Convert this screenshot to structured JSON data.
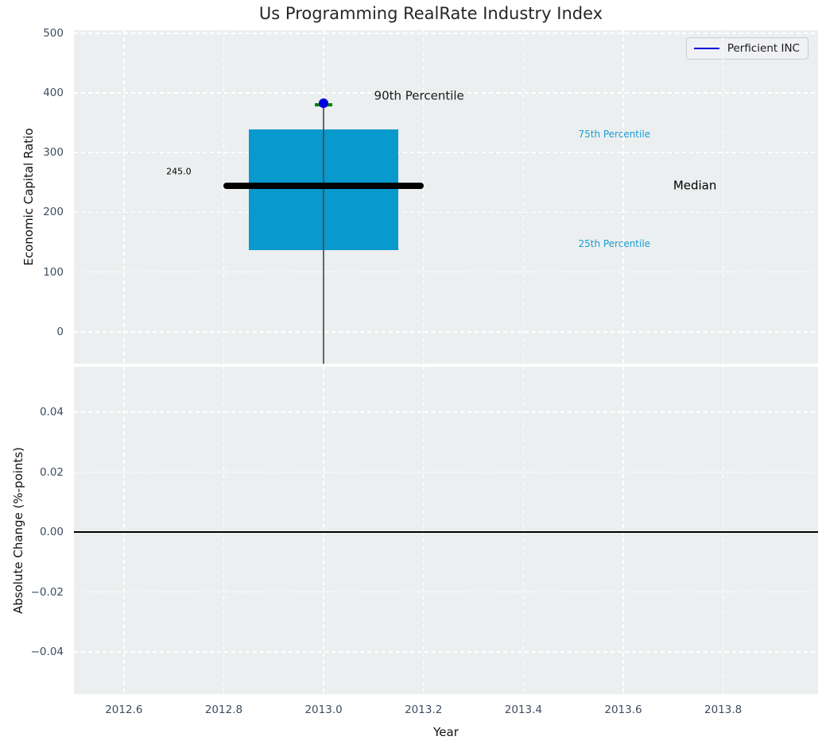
{
  "figure": {
    "title": "Us Programming RealRate Industry Index"
  },
  "legend": {
    "label": "Perficient INC",
    "line_color": "#0000dd"
  },
  "chart_data": [
    {
      "type": "box",
      "panel": "economic-capital-ratio",
      "title": "Us Programming RealRate Industry Index",
      "ylabel": "Economic Capital Ratio",
      "ylim": [
        -53.5,
        505
      ],
      "yticks": [
        0,
        100,
        200,
        300,
        400,
        500
      ],
      "ytick_labels": [
        "0",
        "100",
        "200",
        "300",
        "400",
        "500"
      ],
      "xlim": [
        2012.5,
        2013.99
      ],
      "xticks": [
        2012.6,
        2012.8,
        2013.0,
        2013.2,
        2013.4,
        2013.6,
        2013.8
      ],
      "xtick_labels": null,
      "grid": true,
      "legend_position": "upper right",
      "box": {
        "x_center": 2013.0,
        "half_width": 0.15,
        "p25": 136,
        "median": 245,
        "p75": 339,
        "p90": 380,
        "fill_color": "#0899cd"
      },
      "median_line": {
        "x_from": 2012.8,
        "x_to": 2013.2,
        "value": 245,
        "label": "245.0",
        "color": "#000000"
      },
      "p90_marker": {
        "x_from": 2012.982,
        "x_to": 2013.018,
        "value": 380,
        "color": "#008000"
      },
      "company_point": {
        "name": "Perficient INC",
        "x": 2013.0,
        "value": 383,
        "color": "#0000dd"
      },
      "drop_line": {
        "x": 2013.0,
        "from": 383,
        "to": -53.5,
        "color": "#4a4a4a"
      },
      "annotations": [
        {
          "text": "245.0",
          "x": 2012.735,
          "y": 267,
          "ha": "right",
          "size": 11,
          "color": "#000000"
        },
        {
          "text": "90th Percentile",
          "x": 2013.101,
          "y": 394,
          "ha": "left",
          "size": 15,
          "color": "#1a1a1a"
        },
        {
          "text": "75th Percentile",
          "x": 2013.51,
          "y": 330,
          "ha": "left",
          "size": 12,
          "color": "#1b9ed3"
        },
        {
          "text": "Median",
          "x": 2013.7,
          "y": 245,
          "ha": "left",
          "size": 15,
          "color": "#000000"
        },
        {
          "text": "25th Percentile",
          "x": 2013.51,
          "y": 146,
          "ha": "left",
          "size": 12,
          "color": "#1b9ed3"
        }
      ]
    },
    {
      "type": "line",
      "panel": "absolute-change",
      "ylabel": "Absolute Change (%-points)",
      "xlabel": "Year",
      "ylim": [
        -0.054,
        0.0551
      ],
      "yticks": [
        0.04,
        0.02,
        0.0,
        -0.02,
        -0.04
      ],
      "ytick_labels": [
        "0.04",
        "0.02",
        "0.00",
        "−0.02",
        "−0.04"
      ],
      "xlim": [
        2012.5,
        2013.99
      ],
      "xticks": [
        2012.6,
        2012.8,
        2013.0,
        2013.2,
        2013.4,
        2013.6,
        2013.8
      ],
      "xtick_labels": [
        "2012.6",
        "2012.8",
        "2013.0",
        "2013.2",
        "2013.4",
        "2013.6",
        "2013.8"
      ],
      "grid": true,
      "zero_line": {
        "value": 0.0,
        "color": "#000000"
      },
      "series": []
    }
  ]
}
